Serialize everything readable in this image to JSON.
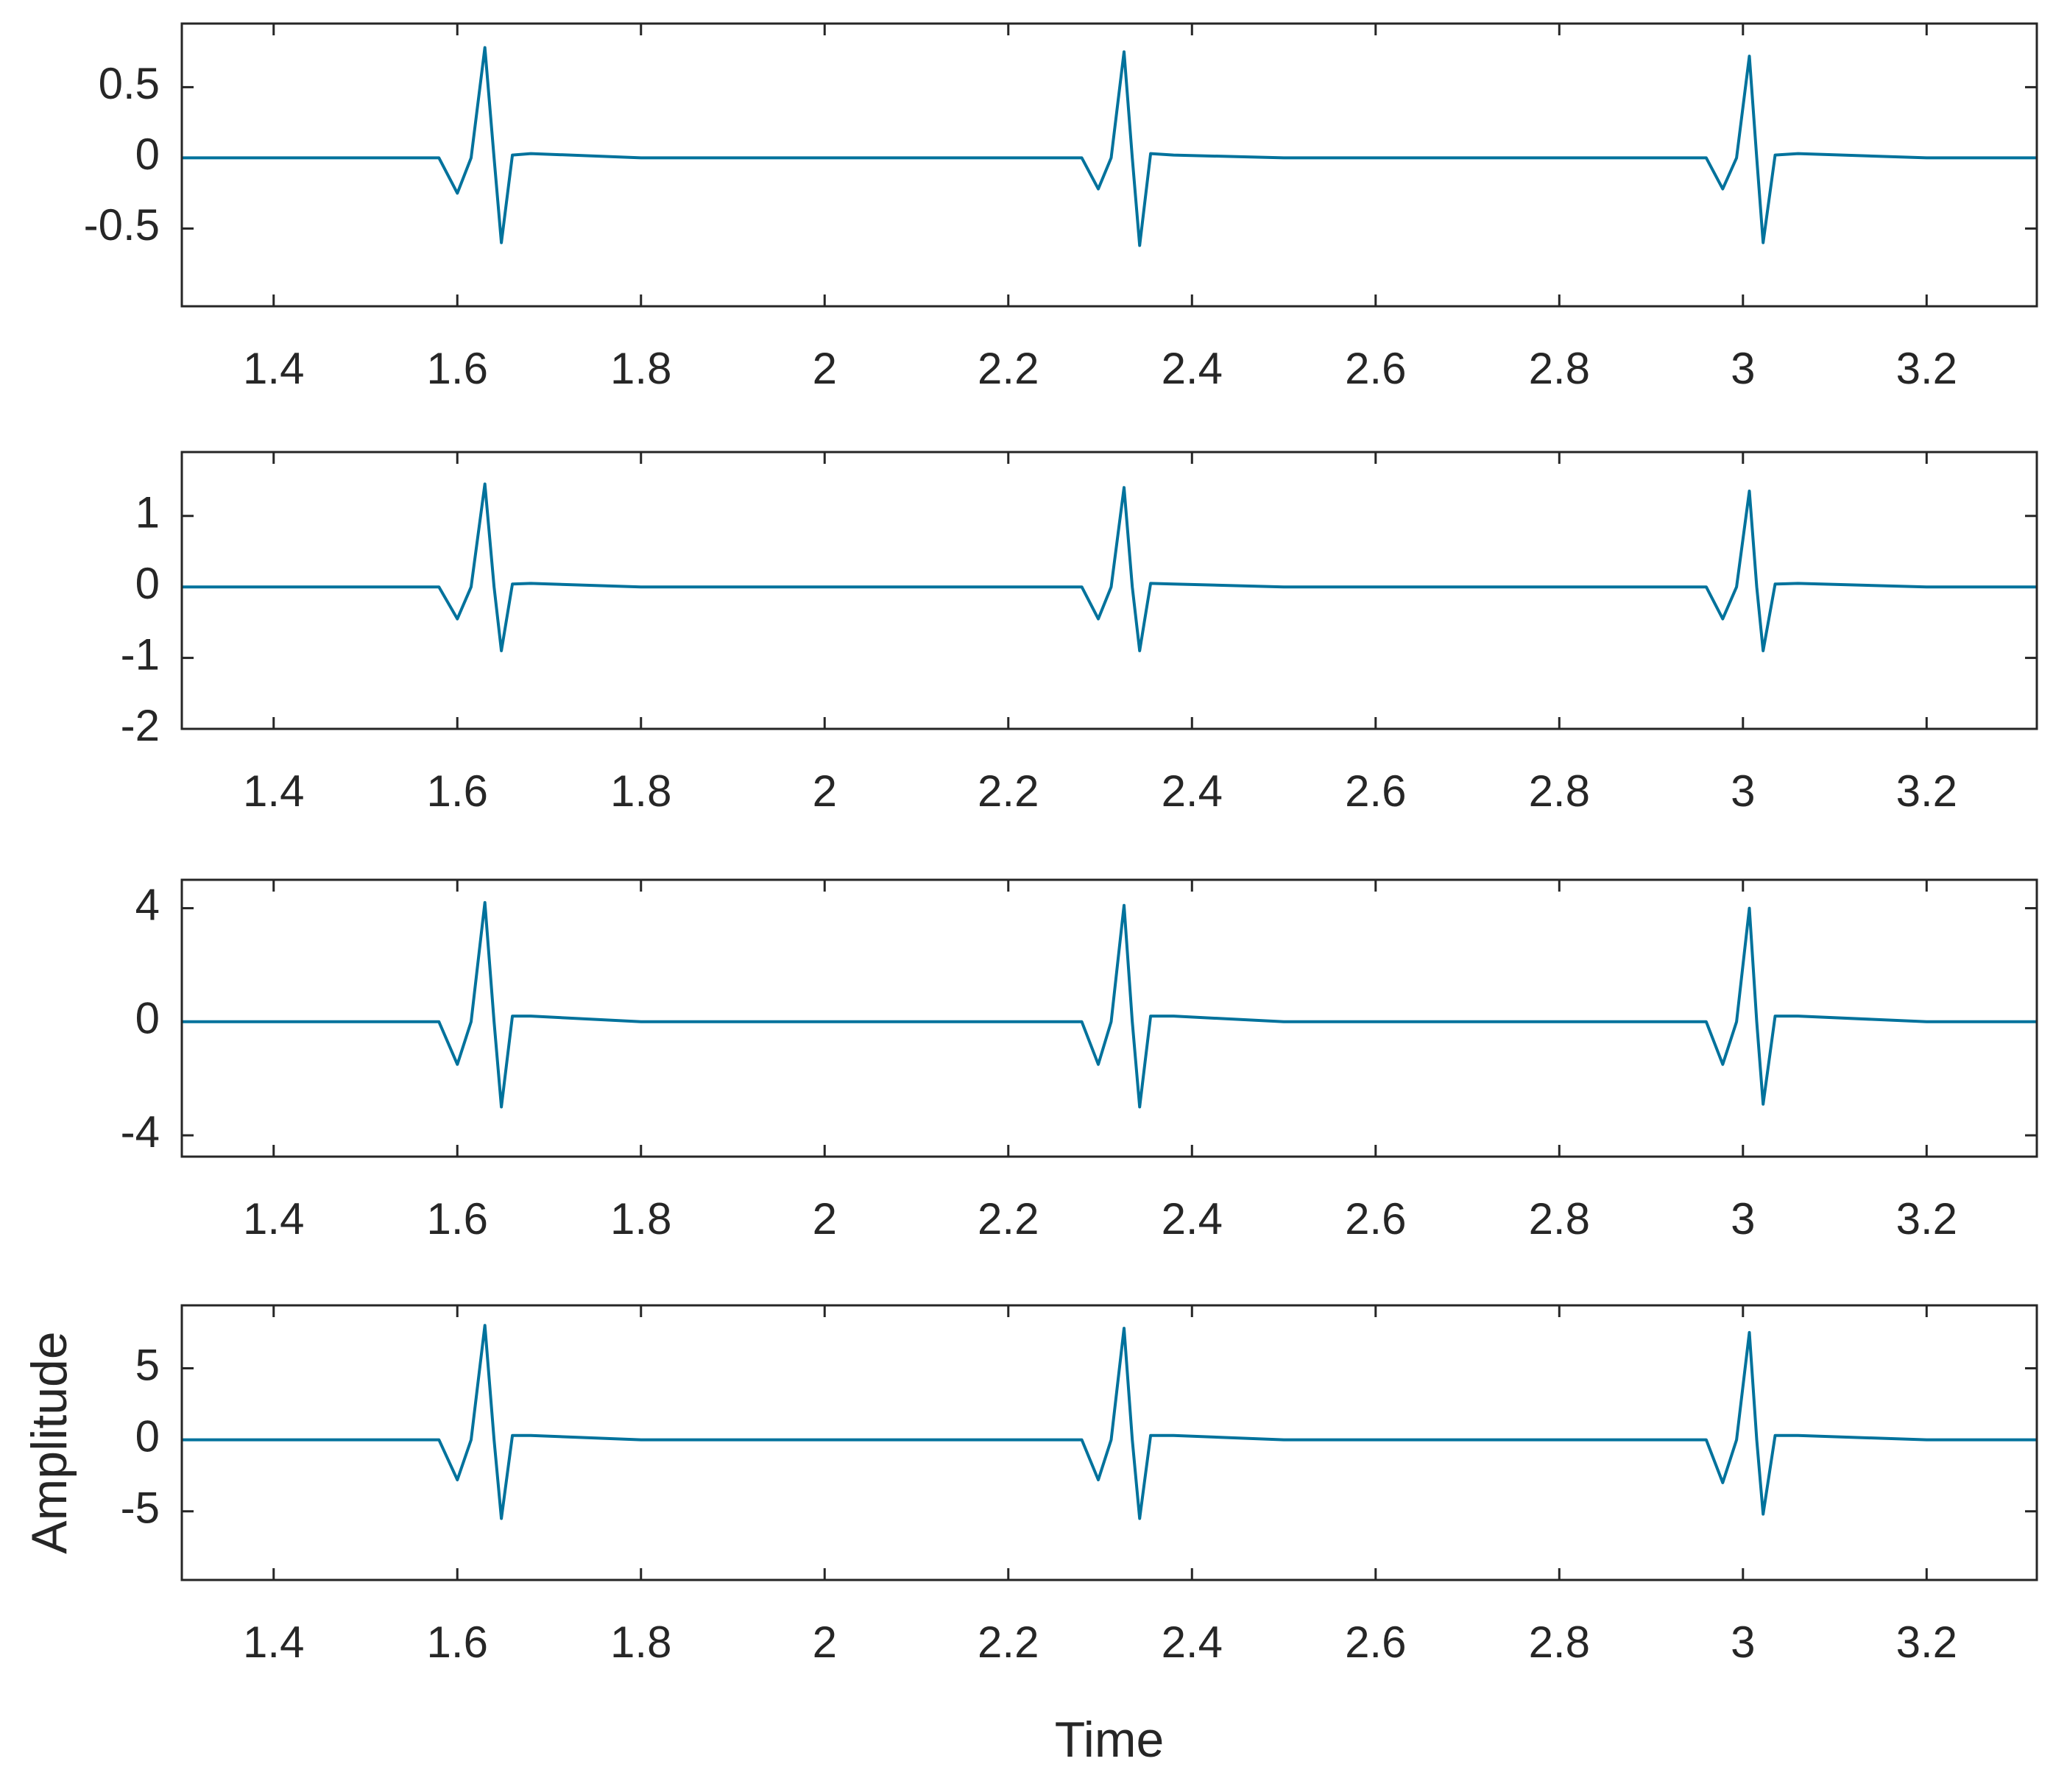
{
  "chart_data": [
    {
      "type": "line",
      "color": "#00729c",
      "x": [
        1.3,
        1.4,
        1.5,
        1.58,
        1.6,
        1.615,
        1.63,
        1.64,
        1.648,
        1.66,
        1.68,
        1.8,
        2.0,
        2.2,
        2.28,
        2.298,
        2.312,
        2.326,
        2.335,
        2.343,
        2.355,
        2.38,
        2.5,
        2.7,
        2.9,
        2.96,
        2.978,
        2.993,
        3.007,
        3.015,
        3.022,
        3.035,
        3.06,
        3.2,
        3.32
      ],
      "values": [
        0,
        0,
        0,
        0,
        -0.25,
        0,
        0.78,
        0,
        -0.6,
        0.02,
        0.03,
        0,
        0,
        0,
        0,
        -0.22,
        0,
        0.75,
        0,
        -0.62,
        0.03,
        0.02,
        0,
        0,
        0,
        0,
        -0.22,
        0,
        0.72,
        0,
        -0.6,
        0.02,
        0.03,
        0,
        0
      ],
      "xlim": [
        1.3,
        3.32
      ],
      "ylim": [
        -1.05,
        0.95
      ],
      "xticks": [
        1.4,
        1.6,
        1.8,
        2,
        2.2,
        2.4,
        2.6,
        2.8,
        3,
        3.2
      ],
      "yticks": [
        -0.5,
        0,
        0.5
      ]
    },
    {
      "type": "line",
      "color": "#00729c",
      "x": [
        1.3,
        1.4,
        1.5,
        1.58,
        1.6,
        1.615,
        1.63,
        1.64,
        1.648,
        1.66,
        1.68,
        1.8,
        2.0,
        2.2,
        2.28,
        2.298,
        2.312,
        2.326,
        2.335,
        2.343,
        2.355,
        2.38,
        2.5,
        2.7,
        2.9,
        2.96,
        2.978,
        2.993,
        3.007,
        3.015,
        3.022,
        3.035,
        3.06,
        3.2,
        3.32
      ],
      "values": [
        0,
        0,
        0,
        0,
        -0.45,
        0,
        1.45,
        0,
        -0.9,
        0.04,
        0.05,
        0,
        0,
        0,
        0,
        -0.45,
        0,
        1.4,
        0,
        -0.9,
        0.05,
        0.04,
        0,
        0,
        0,
        0,
        -0.45,
        0,
        1.35,
        0,
        -0.9,
        0.04,
        0.05,
        0,
        0
      ],
      "xlim": [
        1.3,
        3.32
      ],
      "ylim": [
        -2,
        1.9
      ],
      "xticks": [
        1.4,
        1.6,
        1.8,
        2,
        2.2,
        2.4,
        2.6,
        2.8,
        3,
        3.2
      ],
      "yticks": [
        -2,
        -1,
        0,
        1
      ]
    },
    {
      "type": "line",
      "color": "#00729c",
      "x": [
        1.3,
        1.4,
        1.5,
        1.58,
        1.6,
        1.615,
        1.63,
        1.64,
        1.648,
        1.66,
        1.68,
        1.8,
        2.0,
        2.2,
        2.28,
        2.298,
        2.312,
        2.326,
        2.335,
        2.343,
        2.355,
        2.38,
        2.5,
        2.7,
        2.9,
        2.96,
        2.978,
        2.993,
        3.007,
        3.015,
        3.022,
        3.035,
        3.06,
        3.2,
        3.32
      ],
      "values": [
        0,
        0,
        0,
        0,
        -1.5,
        0,
        4.2,
        0,
        -3,
        0.2,
        0.2,
        0,
        0,
        0,
        0,
        -1.5,
        0,
        4.1,
        0,
        -3,
        0.2,
        0.2,
        0,
        0,
        0,
        0,
        -1.5,
        0,
        4,
        0,
        -2.9,
        0.2,
        0.2,
        0,
        0
      ],
      "xlim": [
        1.3,
        3.32
      ],
      "ylim": [
        -4.75,
        5
      ],
      "xticks": [
        1.4,
        1.6,
        1.8,
        2,
        2.2,
        2.4,
        2.6,
        2.8,
        3,
        3.2
      ],
      "yticks": [
        -4,
        0,
        4
      ]
    },
    {
      "type": "line",
      "color": "#00729c",
      "x": [
        1.3,
        1.4,
        1.5,
        1.58,
        1.6,
        1.615,
        1.63,
        1.64,
        1.648,
        1.66,
        1.68,
        1.8,
        2.0,
        2.2,
        2.28,
        2.298,
        2.312,
        2.326,
        2.335,
        2.343,
        2.355,
        2.38,
        2.5,
        2.7,
        2.9,
        2.96,
        2.978,
        2.993,
        3.007,
        3.015,
        3.022,
        3.035,
        3.06,
        3.2,
        3.32
      ],
      "values": [
        0,
        0,
        0,
        0,
        -2.8,
        0,
        8,
        0,
        -5.5,
        0.3,
        0.3,
        0,
        0,
        0,
        0,
        -2.8,
        0,
        7.8,
        0,
        -5.5,
        0.3,
        0.3,
        0,
        0,
        0,
        0,
        -3,
        0,
        7.5,
        0,
        -5.2,
        0.3,
        0.3,
        0,
        0
      ],
      "xlim": [
        1.3,
        3.32
      ],
      "ylim": [
        -9.8,
        9.4
      ],
      "xticks": [
        1.4,
        1.6,
        1.8,
        2,
        2.2,
        2.4,
        2.6,
        2.8,
        3,
        3.2
      ],
      "yticks": [
        -5,
        0,
        5
      ],
      "xlabel": "Time",
      "ylabel": "Amplitude"
    }
  ]
}
